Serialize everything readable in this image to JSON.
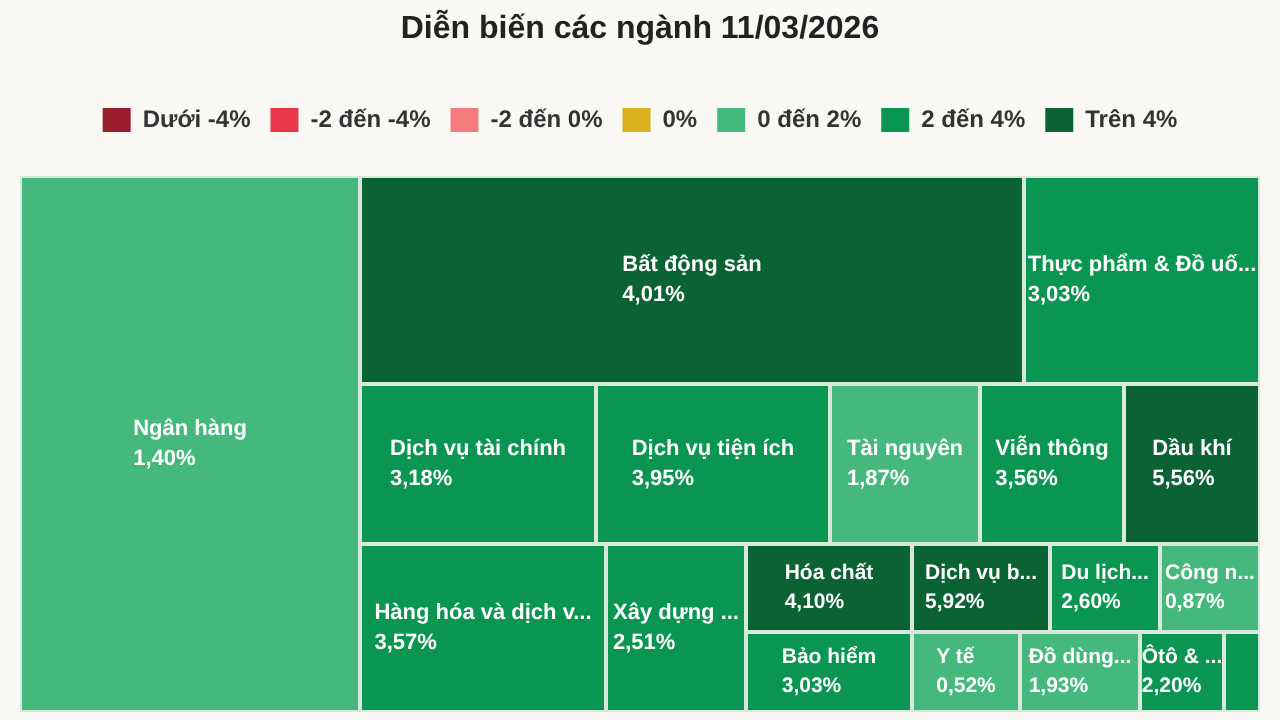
{
  "chart_data": {
    "type": "other",
    "title": "Diễn biến các ngành 11/03/2026",
    "legend": "top",
    "categories": [
      "Ngân hàng",
      "Bất động sản",
      "Thực phẩm & Đồ uố...",
      "Dịch vụ tài chính",
      "Dịch vụ tiện ích",
      "Tài nguyên",
      "Viễn thông",
      "Dầu khí",
      "Hàng hóa và dịch v...",
      "Xây dựng ...",
      "Hóa chất",
      "Dịch vụ b...",
      "Du lịch...",
      "Công n...",
      "Bảo hiểm",
      "Y tế",
      "Đồ dùng...",
      "Ôtô & ...",
      null
    ],
    "series": [
      {
        "name": "Dưới -4%",
        "color": "#9b1c2c",
        "values": [
          null,
          null,
          null,
          null,
          null,
          null,
          null,
          null,
          null,
          null,
          null,
          null,
          null,
          null,
          null,
          null,
          null,
          null,
          null
        ],
        "value_labels": [
          null,
          null,
          null,
          null,
          null,
          null,
          null,
          null,
          null,
          null,
          null,
          null,
          null,
          null,
          null,
          null,
          null,
          null,
          null
        ]
      },
      {
        "name": "-2 đến -4%",
        "color": "#e8384a",
        "values": [
          null,
          null,
          null,
          null,
          null,
          null,
          null,
          null,
          null,
          null,
          null,
          null,
          null,
          null,
          null,
          null,
          null,
          null,
          null
        ],
        "value_labels": [
          null,
          null,
          null,
          null,
          null,
          null,
          null,
          null,
          null,
          null,
          null,
          null,
          null,
          null,
          null,
          null,
          null,
          null,
          null
        ]
      },
      {
        "name": "-2 đến 0%",
        "color": "#f47c80",
        "values": [
          null,
          null,
          null,
          null,
          null,
          null,
          null,
          null,
          null,
          null,
          null,
          null,
          null,
          null,
          null,
          null,
          null,
          null,
          null
        ],
        "value_labels": [
          null,
          null,
          null,
          null,
          null,
          null,
          null,
          null,
          null,
          null,
          null,
          null,
          null,
          null,
          null,
          null,
          null,
          null,
          null
        ]
      },
      {
        "name": "0%",
        "color": "#d8b21c",
        "values": [
          null,
          null,
          null,
          null,
          null,
          null,
          null,
          null,
          null,
          null,
          null,
          null,
          null,
          null,
          null,
          null,
          null,
          null,
          null
        ],
        "value_labels": [
          null,
          null,
          null,
          null,
          null,
          null,
          null,
          null,
          null,
          null,
          null,
          null,
          null,
          null,
          null,
          null,
          null,
          null,
          null
        ]
      },
      {
        "name": "0 đến 2%",
        "color": "#45b97c",
        "values": [
          1.4,
          null,
          null,
          null,
          null,
          1.87,
          null,
          null,
          null,
          null,
          null,
          null,
          null,
          0.87,
          null,
          0.52,
          1.93,
          null,
          null
        ],
        "value_labels": [
          "1,40%",
          null,
          null,
          null,
          null,
          "1,87%",
          null,
          null,
          null,
          null,
          null,
          null,
          null,
          "0,87%",
          null,
          "0,52%",
          "1,93%",
          null,
          null
        ]
      },
      {
        "name": "2 đến 4%",
        "color": "#0a9650",
        "values": [
          null,
          null,
          3.03,
          3.18,
          3.95,
          null,
          3.56,
          null,
          3.57,
          2.51,
          null,
          null,
          2.6,
          null,
          3.03,
          null,
          null,
          2.2,
          null
        ],
        "value_labels": [
          null,
          null,
          "3,03%",
          "3,18%",
          "3,95%",
          null,
          "3,56%",
          null,
          "3,57%",
          "2,51%",
          null,
          null,
          "2,60%",
          null,
          "3,03%",
          null,
          null,
          "2,20%",
          null
        ]
      },
      {
        "name": "Trên 4%",
        "color": "#0b6232",
        "values": [
          null,
          4.01,
          null,
          null,
          null,
          null,
          null,
          5.56,
          null,
          null,
          4.1,
          5.92,
          null,
          null,
          null,
          null,
          null,
          null,
          null
        ],
        "value_labels": [
          null,
          "4,01%",
          null,
          null,
          null,
          null,
          null,
          "5,56%",
          null,
          null,
          "4,10%",
          "5,92%",
          null,
          null,
          null,
          null,
          null,
          null,
          null
        ]
      }
    ]
  }
}
